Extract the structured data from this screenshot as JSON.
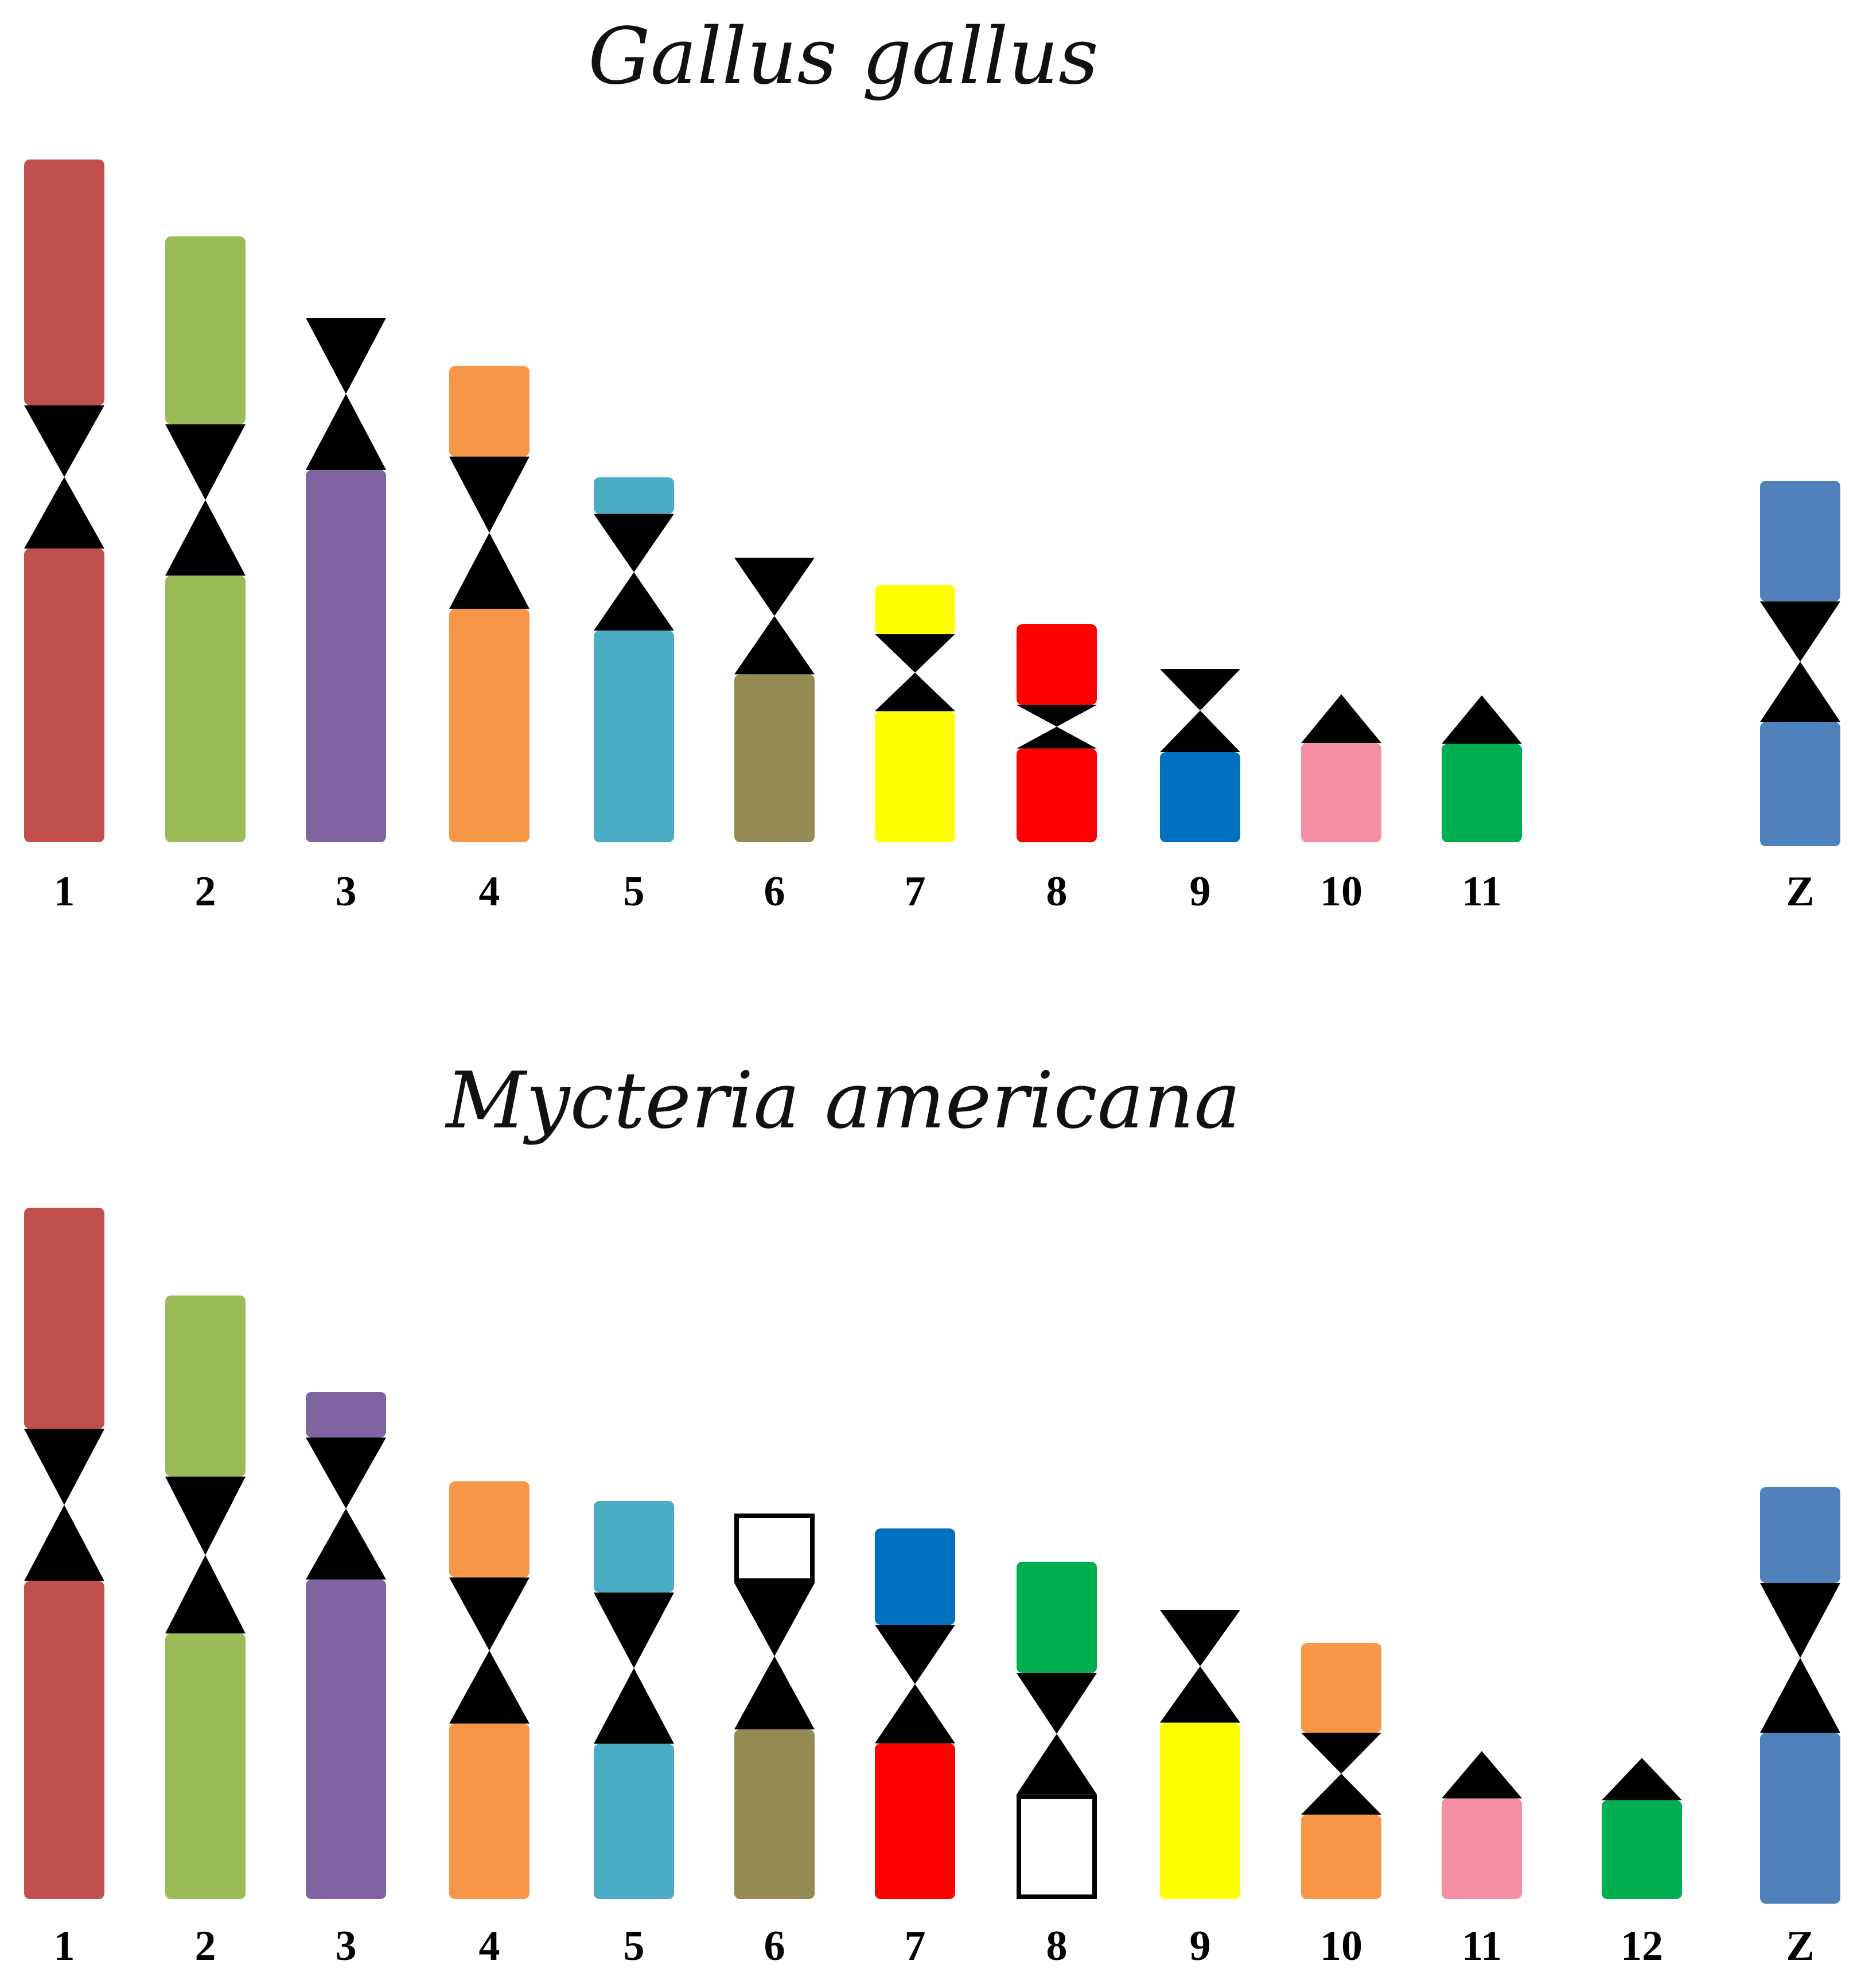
{
  "panels": [
    {
      "title": "Gallus gallus",
      "chromosomes": [
        {
          "label": "1",
          "segments": [
            {
              "from": 0.0,
              "to": 0.36,
              "color": "#c0504d"
            },
            {
              "from": 0.36,
              "to": 0.57,
              "type": "centromere"
            },
            {
              "from": 0.57,
              "to": 1.0,
              "color": "#c0504d"
            }
          ]
        },
        {
          "label": "2",
          "segments": [
            {
              "from": 0.0,
              "to": 0.31,
              "color": "#9bbb59"
            },
            {
              "from": 0.31,
              "to": 0.56,
              "type": "centromere"
            },
            {
              "from": 0.56,
              "to": 1.0,
              "color": "#9bbb59"
            }
          ]
        },
        {
          "label": "3",
          "segments": [
            {
              "from": 0.0,
              "to": 0.29,
              "type": "centromere"
            },
            {
              "from": 0.29,
              "to": 1.0,
              "color": "#8064a2"
            }
          ]
        },
        {
          "label": "4",
          "segments": [
            {
              "from": 0.0,
              "to": 0.19,
              "color": "#f79646"
            },
            {
              "from": 0.19,
              "to": 0.51,
              "type": "centromere"
            },
            {
              "from": 0.51,
              "to": 1.0,
              "color": "#f79646"
            }
          ]
        },
        {
          "label": "5",
          "segments": [
            {
              "from": 0.0,
              "to": 0.1,
              "color": "#4bacc6"
            },
            {
              "from": 0.1,
              "to": 0.42,
              "type": "centromere"
            },
            {
              "from": 0.42,
              "to": 1.0,
              "color": "#4bacc6"
            }
          ]
        },
        {
          "label": "6",
          "segments": [
            {
              "from": 0.0,
              "to": 0.41,
              "type": "centromere"
            },
            {
              "from": 0.41,
              "to": 1.0,
              "color": "#948a54"
            }
          ]
        },
        {
          "label": "7",
          "segments": [
            {
              "from": 0.0,
              "to": 0.19,
              "color": "#ffff00"
            },
            {
              "from": 0.19,
              "to": 0.49,
              "type": "centromere"
            },
            {
              "from": 0.49,
              "to": 1.0,
              "color": "#ffff00"
            }
          ]
        },
        {
          "label": "8",
          "segments": [
            {
              "from": 0.0,
              "to": 0.37,
              "color": "#ff0000"
            },
            {
              "from": 0.37,
              "to": 0.57,
              "type": "centromere"
            },
            {
              "from": 0.57,
              "to": 1.0,
              "color": "#ff0000"
            }
          ]
        },
        {
          "label": "9",
          "segments": [
            {
              "from": 0.0,
              "to": 0.48,
              "type": "centromere"
            },
            {
              "from": 0.48,
              "to": 1.0,
              "color": "#0070c0"
            }
          ]
        },
        {
          "label": "10",
          "segments": [
            {
              "from": 0.0,
              "to": 0.33,
              "type": "telocentric"
            },
            {
              "from": 0.33,
              "to": 1.0,
              "color": "#f48fa3"
            }
          ]
        },
        {
          "label": "11",
          "segments": [
            {
              "from": 0.0,
              "to": 0.33,
              "type": "telocentric"
            },
            {
              "from": 0.33,
              "to": 1.0,
              "color": "#00b050"
            }
          ]
        },
        {
          "label": "Z",
          "segments": [
            {
              "from": 0.0,
              "to": 0.33,
              "color": "#4f81bd"
            },
            {
              "from": 0.33,
              "to": 0.66,
              "type": "centromere"
            },
            {
              "from": 0.66,
              "to": 1.0,
              "color": "#4f81bd"
            }
          ]
        }
      ]
    },
    {
      "title": "Mycteria americana",
      "chromosomes": [
        {
          "label": "1",
          "segments": [
            {
              "from": 0.0,
              "to": 0.32,
              "color": "#c0504d"
            },
            {
              "from": 0.32,
              "to": 0.54,
              "type": "centromere"
            },
            {
              "from": 0.54,
              "to": 1.0,
              "color": "#c0504d"
            }
          ]
        },
        {
          "label": "2",
          "segments": [
            {
              "from": 0.0,
              "to": 0.3,
              "color": "#9bbb59"
            },
            {
              "from": 0.3,
              "to": 0.56,
              "type": "centromere"
            },
            {
              "from": 0.56,
              "to": 1.0,
              "color": "#9bbb59"
            }
          ]
        },
        {
          "label": "3",
          "segments": [
            {
              "from": 0.0,
              "to": 0.09,
              "color": "#8064a2"
            },
            {
              "from": 0.09,
              "to": 0.37,
              "type": "centromere"
            },
            {
              "from": 0.37,
              "to": 1.0,
              "color": "#8064a2"
            }
          ]
        },
        {
          "label": "4",
          "segments": [
            {
              "from": 0.0,
              "to": 0.23,
              "color": "#f79646"
            },
            {
              "from": 0.23,
              "to": 0.58,
              "type": "centromere"
            },
            {
              "from": 0.58,
              "to": 1.0,
              "color": "#f79646"
            }
          ]
        },
        {
          "label": "5",
          "segments": [
            {
              "from": 0.0,
              "to": 0.23,
              "color": "#4bacc6"
            },
            {
              "from": 0.23,
              "to": 0.61,
              "type": "centromere"
            },
            {
              "from": 0.61,
              "to": 1.0,
              "color": "#4bacc6"
            }
          ]
        },
        {
          "label": "6",
          "segments": [
            {
              "from": 0.0,
              "to": 0.18,
              "color": "#ffffff",
              "outline": true
            },
            {
              "from": 0.18,
              "to": 0.56,
              "type": "centromere"
            },
            {
              "from": 0.56,
              "to": 1.0,
              "color": "#948a54"
            }
          ]
        },
        {
          "label": "7",
          "segments": [
            {
              "from": 0.0,
              "to": 0.26,
              "color": "#0070c0"
            },
            {
              "from": 0.26,
              "to": 0.58,
              "type": "centromere"
            },
            {
              "from": 0.58,
              "to": 1.0,
              "color": "#ff0000"
            }
          ]
        },
        {
          "label": "8",
          "segments": [
            {
              "from": 0.0,
              "to": 0.33,
              "color": "#00b050"
            },
            {
              "from": 0.33,
              "to": 0.69,
              "type": "centromere"
            },
            {
              "from": 0.69,
              "to": 1.0,
              "color": "#ffffff",
              "outline": true
            }
          ]
        },
        {
          "label": "9",
          "segments": [
            {
              "from": 0.0,
              "to": 0.39,
              "type": "centromere"
            },
            {
              "from": 0.39,
              "to": 1.0,
              "color": "#ffff00"
            }
          ]
        },
        {
          "label": "10",
          "segments": [
            {
              "from": 0.0,
              "to": 0.35,
              "color": "#f79646"
            },
            {
              "from": 0.35,
              "to": 0.67,
              "type": "centromere"
            },
            {
              "from": 0.67,
              "to": 1.0,
              "color": "#f79646"
            }
          ]
        },
        {
          "label": "11",
          "segments": [
            {
              "from": 0.0,
              "to": 0.32,
              "type": "telocentric"
            },
            {
              "from": 0.32,
              "to": 1.0,
              "color": "#f48fa3"
            }
          ]
        },
        {
          "label": "12",
          "segments": [
            {
              "from": 0.0,
              "to": 0.3,
              "type": "telocentric"
            },
            {
              "from": 0.3,
              "to": 1.0,
              "color": "#00b050"
            }
          ]
        },
        {
          "label": "Z",
          "segments": [
            {
              "from": 0.0,
              "to": 0.23,
              "color": "#4f81bd"
            },
            {
              "from": 0.23,
              "to": 0.59,
              "type": "centromere"
            },
            {
              "from": 0.59,
              "to": 1.0,
              "color": "#4f81bd"
            }
          ]
        }
      ]
    }
  ]
}
